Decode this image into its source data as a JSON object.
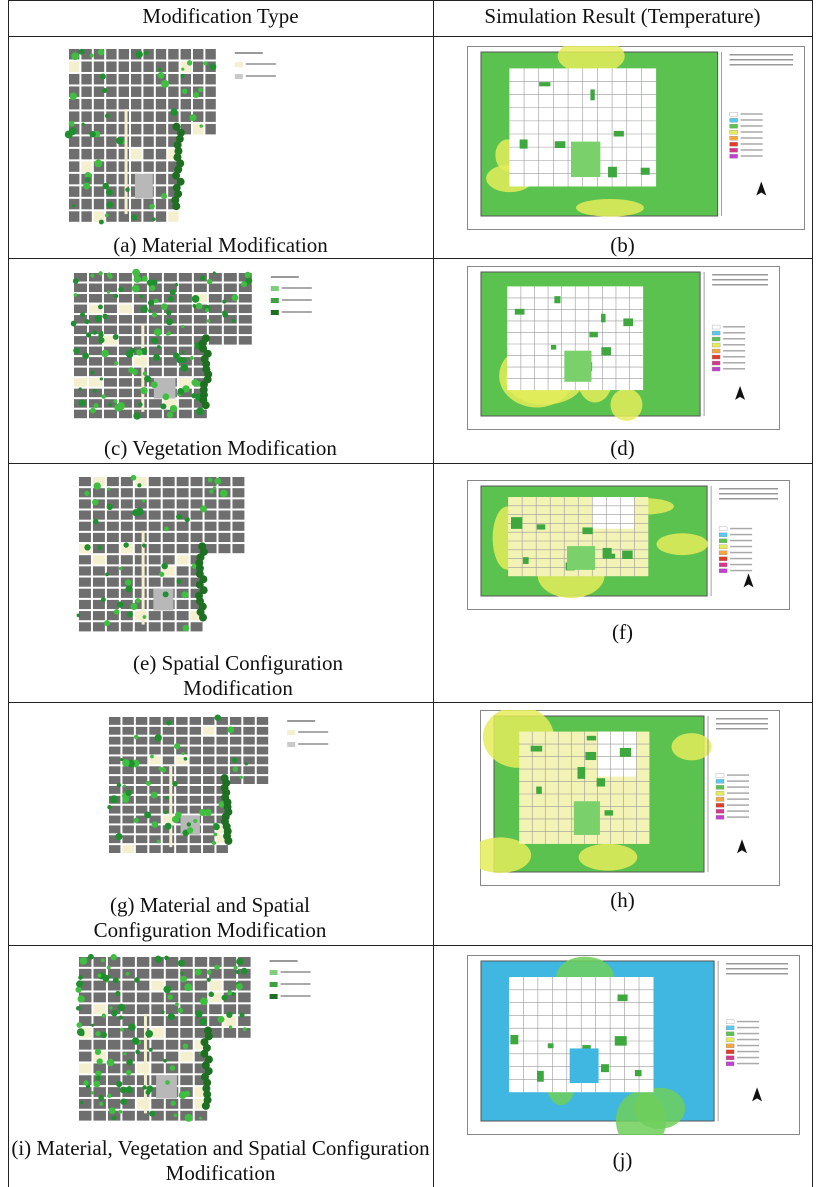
{
  "table": {
    "header": [
      "Modification Type",
      "Simulation Result (Temperature)"
    ],
    "rows": [
      [
        "(a)  Material Modification",
        "(b)"
      ],
      [
        "(c) Vegetation Modification",
        "(d)"
      ],
      [
        "(e) Spatial Configuration Modification",
        "(f)"
      ],
      [
        "(g) Material and Spatial Configuration Modification",
        "(h)"
      ],
      [
        "(i) Material, Vegetation and Spatial Configuration Modification",
        "(j)"
      ]
    ]
  }
}
